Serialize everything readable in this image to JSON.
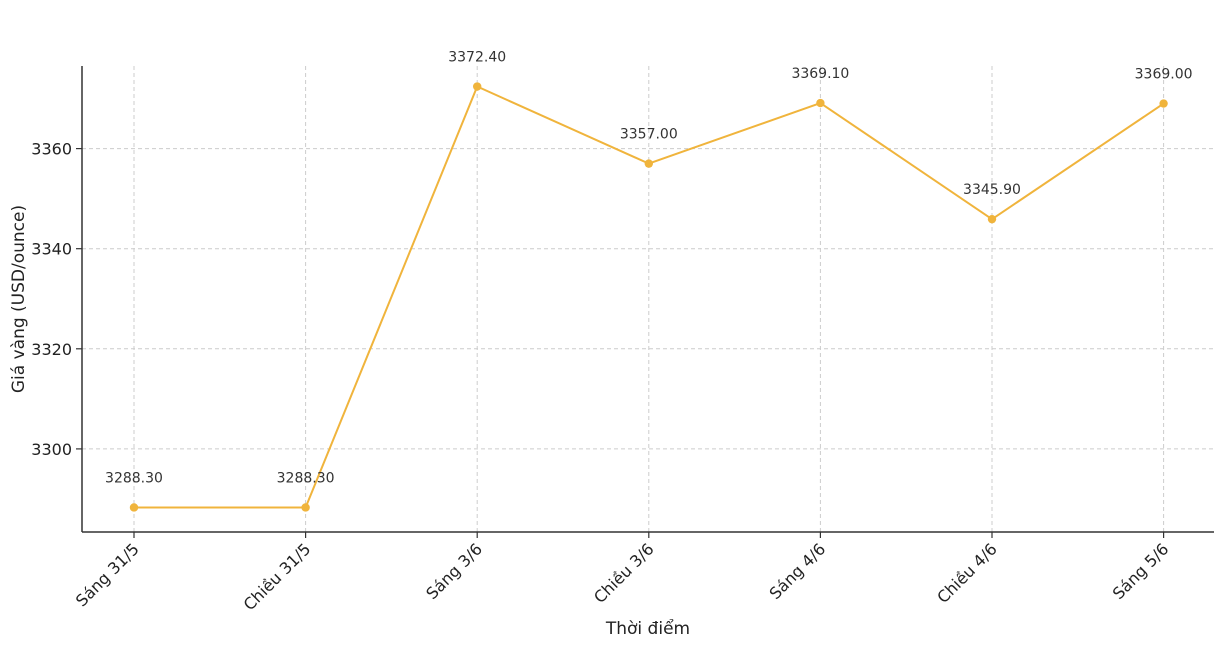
{
  "chart_data": {
    "type": "line",
    "title": "",
    "xlabel": "Thời điểm",
    "ylabel": "Giá vàng (USD/ounce)",
    "categories": [
      "Sáng 31/5",
      "Chiều 31/5",
      "Sáng 3/6",
      "Chiều 3/6",
      "Sáng 4/6",
      "Chiều 4/6",
      "Sáng 5/6"
    ],
    "series": [
      {
        "values": [
          3288.3,
          3288.3,
          3372.4,
          3357.0,
          3369.1,
          3345.9,
          3369.0
        ],
        "data_labels": [
          "3288.30",
          "3288.30",
          "3372.40",
          "3357.00",
          "3369.10",
          "3345.90",
          "3369.00"
        ],
        "color": "#f0b43c"
      }
    ],
    "ylim": [
      3283.4,
      3376.5
    ],
    "yticks": [
      3300,
      3320,
      3340,
      3360
    ],
    "ytick_labels": [
      "3300",
      "3320",
      "3340",
      "3360"
    ],
    "grid": true,
    "legend": "none"
  }
}
